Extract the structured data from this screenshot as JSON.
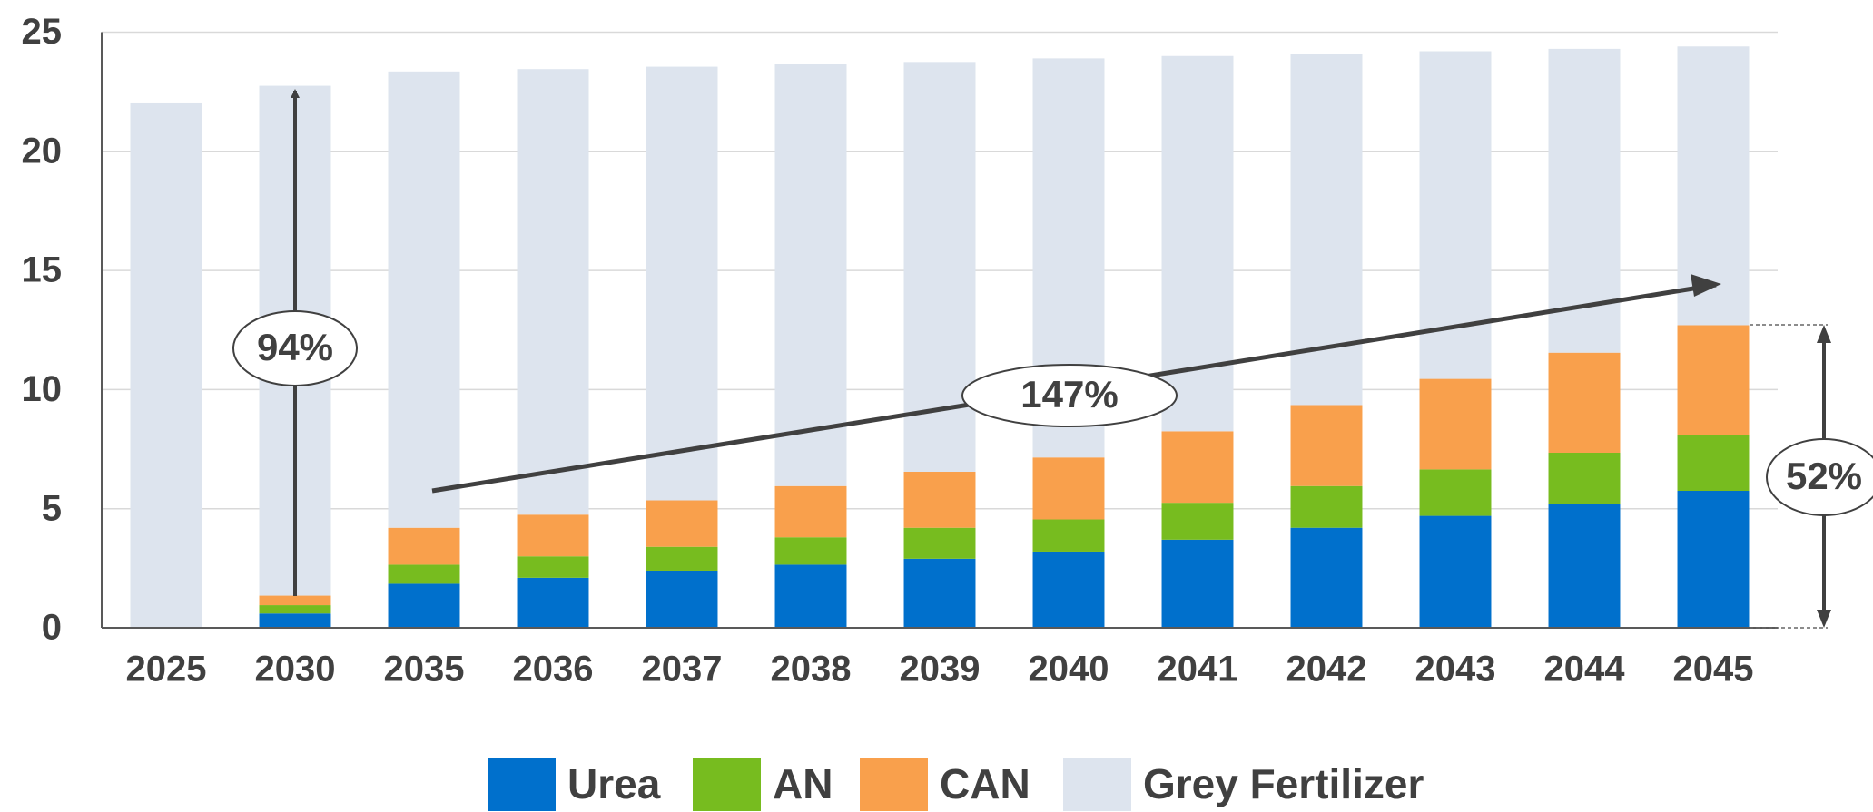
{
  "chart_data": {
    "type": "stacked_bar",
    "categories": [
      "2025",
      "2030",
      "2035",
      "2036",
      "2037",
      "2038",
      "2039",
      "2040",
      "2041",
      "2042",
      "2043",
      "2044",
      "2045"
    ],
    "series": [
      {
        "name": "Urea",
        "color": "#0070cc",
        "values": [
          0,
          0.6,
          1.85,
          2.1,
          2.4,
          2.65,
          2.9,
          3.2,
          3.7,
          4.2,
          4.7,
          5.2,
          5.75
        ]
      },
      {
        "name": "AN",
        "color": "#77bc1f",
        "values": [
          0,
          0.35,
          0.8,
          0.9,
          1.0,
          1.15,
          1.3,
          1.35,
          1.55,
          1.75,
          1.95,
          2.15,
          2.35
        ]
      },
      {
        "name": "CAN",
        "color": "#f9a04c",
        "values": [
          0,
          0.4,
          1.55,
          1.75,
          1.95,
          2.15,
          2.35,
          2.6,
          3.0,
          3.4,
          3.8,
          4.2,
          4.6
        ]
      },
      {
        "name": "Grey Fertilizer",
        "color": "#dde4ee",
        "values": [
          22.05,
          21.4,
          19.15,
          18.7,
          18.2,
          17.7,
          17.2,
          16.75,
          15.75,
          14.75,
          13.75,
          12.75,
          11.7
        ]
      }
    ],
    "ylim": [
      0,
      25
    ],
    "yticks": [
      0,
      5,
      10,
      15,
      20,
      25
    ],
    "grid": true,
    "legend": "bottom",
    "annotations": [
      "94%",
      "147%",
      "52%"
    ]
  }
}
